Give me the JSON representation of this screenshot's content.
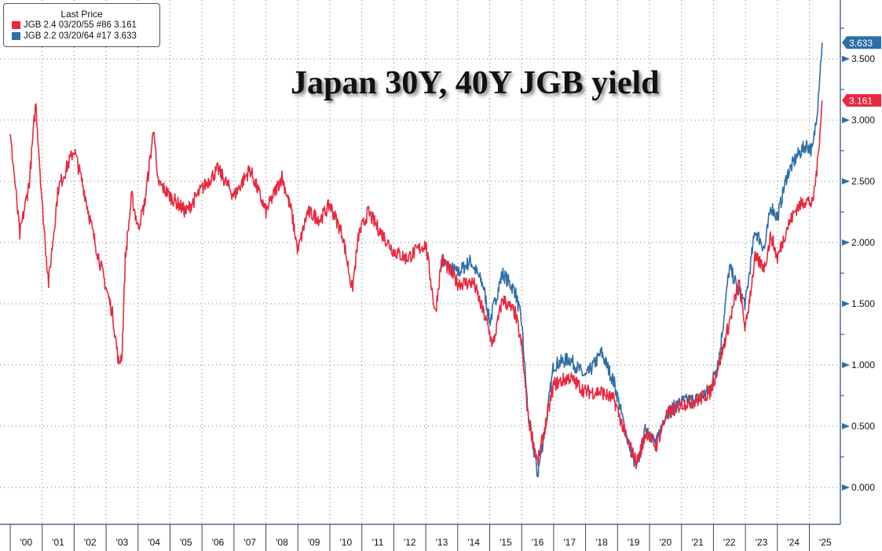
{
  "chart_data": {
    "type": "line",
    "title": "Japan 30Y, 40Y JGB yield",
    "legend": {
      "header": "Last Price",
      "placement": "top-left"
    },
    "xlabel": "",
    "ylabel": "",
    "ylim": [
      -0.3,
      3.9
    ],
    "yticks": [
      "0.000",
      "0.500",
      "1.000",
      "1.500",
      "2.000",
      "2.500",
      "3.000",
      "3.500"
    ],
    "xticks": [
      "'00",
      "'01",
      "'02",
      "'03",
      "'04",
      "'05",
      "'06",
      "'07",
      "'08",
      "'09",
      "'10",
      "'11",
      "'12",
      "'13",
      "'14",
      "'15",
      "'16",
      "'17",
      "'18",
      "'19",
      "'20",
      "'21",
      "'22",
      "'23",
      "'24",
      "'25"
    ],
    "grid": true,
    "series": [
      {
        "name": "JGB 2.4 03/20/55 #86",
        "last": "3.161",
        "color": "#e8283f",
        "x": [
          2000.0,
          2000.1,
          2000.3,
          2000.6,
          2000.8,
          2001.0,
          2001.2,
          2001.5,
          2002.0,
          2002.3,
          2002.6,
          2002.9,
          2003.2,
          2003.4,
          2003.5,
          2003.6,
          2003.8,
          2004.0,
          2004.2,
          2004.5,
          2004.6,
          2005.0,
          2005.5,
          2006.0,
          2006.5,
          2007.0,
          2007.5,
          2008.0,
          2008.5,
          2008.8,
          2009.0,
          2009.3,
          2009.7,
          2010.0,
          2010.4,
          2010.7,
          2010.9,
          2011.2,
          2011.5,
          2012.0,
          2012.4,
          2012.7,
          2013.0,
          2013.3,
          2013.5,
          2014.0,
          2014.5,
          2014.9,
          2015.1,
          2015.4,
          2015.8,
          2016.0,
          2016.2,
          2016.5,
          2016.8,
          2017.0,
          2017.5,
          2018.0,
          2018.5,
          2018.9,
          2019.3,
          2019.6,
          2019.9,
          2020.2,
          2020.5,
          2021.0,
          2021.5,
          2021.9,
          2022.2,
          2022.5,
          2022.8,
          2023.0,
          2023.3,
          2023.6,
          2023.8,
          2024.0,
          2024.3,
          2024.6,
          2024.9,
          2025.1,
          2025.25,
          2025.4
        ],
        "y": [
          2.86,
          2.63,
          2.06,
          2.5,
          3.15,
          2.31,
          1.67,
          2.44,
          2.76,
          2.44,
          2.06,
          1.74,
          1.42,
          1.0,
          1.1,
          1.87,
          2.38,
          2.12,
          2.31,
          2.95,
          2.5,
          2.38,
          2.25,
          2.44,
          2.6,
          2.38,
          2.6,
          2.25,
          2.54,
          2.25,
          1.93,
          2.25,
          2.19,
          2.31,
          2.06,
          1.61,
          2.06,
          2.25,
          2.12,
          1.93,
          1.87,
          1.93,
          1.99,
          1.42,
          1.87,
          1.67,
          1.67,
          1.35,
          1.16,
          1.54,
          1.42,
          1.16,
          0.58,
          0.2,
          0.58,
          0.84,
          0.9,
          0.78,
          0.78,
          0.71,
          0.39,
          0.2,
          0.46,
          0.33,
          0.58,
          0.68,
          0.71,
          0.78,
          1.03,
          1.35,
          1.67,
          1.29,
          1.87,
          1.8,
          2.06,
          1.87,
          2.12,
          2.28,
          2.35,
          2.31,
          2.63,
          3.161
        ]
      },
      {
        "name": "JGB 2.2 03/20/64 #17",
        "last": "3.633",
        "color": "#2e6ea6",
        "x": [
          2013.5,
          2014.0,
          2014.4,
          2014.8,
          2015.0,
          2015.4,
          2015.8,
          2016.0,
          2016.2,
          2016.5,
          2016.8,
          2017.0,
          2017.5,
          2018.0,
          2018.5,
          2018.9,
          2019.3,
          2019.6,
          2019.9,
          2020.2,
          2020.5,
          2021.0,
          2021.5,
          2021.9,
          2022.2,
          2022.5,
          2022.8,
          2023.0,
          2023.3,
          2023.6,
          2023.8,
          2024.0,
          2024.3,
          2024.6,
          2024.9,
          2025.1,
          2025.25,
          2025.4
        ],
        "y": [
          1.85,
          1.75,
          1.85,
          1.65,
          1.35,
          1.75,
          1.6,
          1.35,
          0.6,
          0.1,
          0.6,
          1.0,
          1.05,
          0.9,
          1.1,
          0.85,
          0.4,
          0.15,
          0.5,
          0.35,
          0.6,
          0.7,
          0.72,
          0.8,
          1.1,
          1.8,
          1.6,
          1.5,
          2.1,
          1.95,
          2.3,
          2.2,
          2.55,
          2.7,
          2.8,
          2.75,
          3.1,
          3.633
        ]
      }
    ]
  }
}
